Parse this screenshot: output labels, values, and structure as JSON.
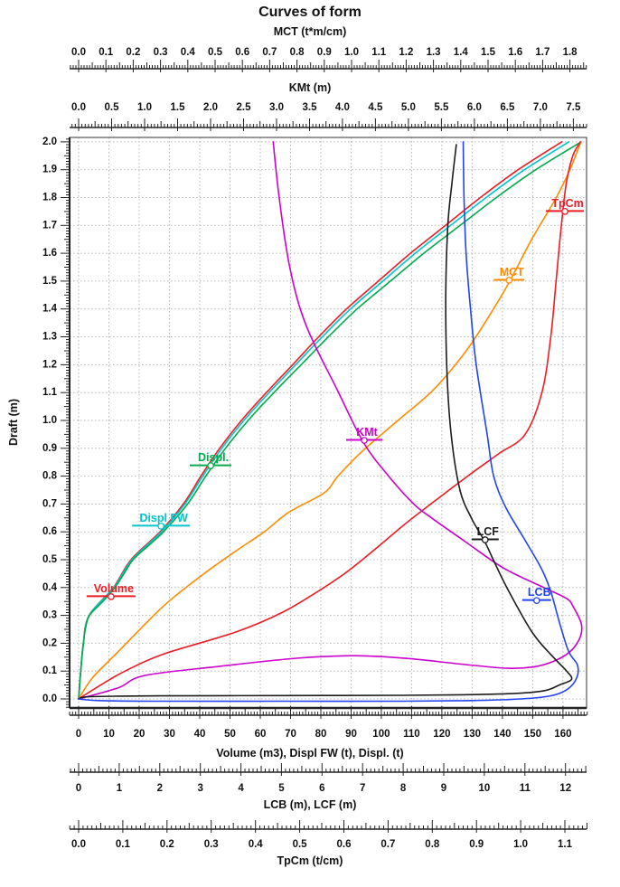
{
  "title": "Curves of form",
  "chart_data": {
    "type": "line",
    "title": "Curves of form",
    "grid": true,
    "y_axis": {
      "id": "draft",
      "title": "Draft (m)",
      "side": "left",
      "range": [
        -0.0325,
        2.016
      ],
      "major_step": 0.1,
      "medium_step": 0.05,
      "minor_step": 0.01,
      "tick_labels": [
        "0.0",
        "0.1",
        "0.2",
        "0.3",
        "0.4",
        "0.5",
        "0.6",
        "0.7",
        "0.8",
        "0.9",
        "1.0",
        "1.1",
        "1.2",
        "1.3",
        "1.4",
        "1.5",
        "1.6",
        "1.7",
        "1.8",
        "1.9",
        "2.0"
      ]
    },
    "x_axes": [
      {
        "id": "mct",
        "title": "MCT (t*m/cm)",
        "side": "top",
        "range": [
          -0.0331,
          1.861
        ],
        "major_step": 0.1,
        "medium_step": 0.05,
        "minor_step": 0.01,
        "tick_labels": [
          "0.0",
          "0.1",
          "0.2",
          "0.3",
          "0.4",
          "0.5",
          "0.6",
          "0.7",
          "0.8",
          "0.9",
          "1.0",
          "1.1",
          "1.2",
          "1.3",
          "1.4",
          "1.5",
          "1.6",
          "1.7",
          "1.8"
        ]
      },
      {
        "id": "kmt",
        "title": "KMt (m)",
        "side": "top",
        "range": [
          -0.137,
          7.7
        ],
        "major_step": 0.5,
        "medium_step": 0.25,
        "minor_step": 0.05,
        "tick_labels": [
          "0.0",
          "0.5",
          "1.0",
          "1.5",
          "2.0",
          "2.5",
          "3.0",
          "3.5",
          "4.0",
          "4.5",
          "5.0",
          "5.5",
          "6.0",
          "6.5",
          "7.0",
          "7.5"
        ]
      },
      {
        "id": "volume",
        "title": "Volume (m3), Displ FW (t), Displ. (t)",
        "side": "bottom",
        "range": [
          -3.0,
          167.8
        ],
        "major_step": 10,
        "medium_step": 5,
        "minor_step": 1,
        "tick_labels": [
          "0",
          "10",
          "20",
          "30",
          "40",
          "50",
          "60",
          "70",
          "80",
          "90",
          "100",
          "110",
          "120",
          "130",
          "140",
          "150",
          "160"
        ]
      },
      {
        "id": "lcb",
        "title": "LCB (m), LCF (m)",
        "side": "bottom",
        "range": [
          -0.2228,
          12.52
        ],
        "major_step": 1,
        "medium_step": 0.5,
        "minor_step": 0.1,
        "tick_labels": [
          "0",
          "1",
          "2",
          "3",
          "4",
          "5",
          "6",
          "7",
          "8",
          "9",
          "10",
          "11",
          "12"
        ]
      },
      {
        "id": "tpcm",
        "title": "TpCm (t/cm)",
        "side": "bottom",
        "range": [
          -0.02045,
          1.149
        ],
        "major_step": 0.1,
        "medium_step": 0.05,
        "minor_step": 0.01,
        "tick_labels": [
          "0.0",
          "0.1",
          "0.2",
          "0.3",
          "0.4",
          "0.5",
          "0.6",
          "0.7",
          "0.8",
          "0.9",
          "1.0",
          "1.1"
        ]
      }
    ],
    "series": [
      {
        "id": "volume",
        "name": "Volume",
        "axis": "volume",
        "color": "#ee1c25",
        "label": {
          "text": "Volume",
          "at": [
            0.364,
            10.7
          ],
          "underline_halfwidth": 27
        },
        "points": [
          [
            0,
            0
          ],
          [
            0.1,
            0.67
          ],
          [
            0.2,
            1.54
          ],
          [
            0.3,
            3.45
          ],
          [
            0.4,
            11.5
          ],
          [
            0.5,
            17.3
          ],
          [
            0.6,
            26.9
          ],
          [
            0.7,
            34.6
          ],
          [
            0.8,
            40.4
          ],
          [
            0.9,
            46.6
          ],
          [
            1.0,
            53.8
          ],
          [
            1.1,
            62.0
          ],
          [
            1.2,
            70.7
          ],
          [
            1.3,
            79.3
          ],
          [
            1.4,
            88.5
          ],
          [
            1.5,
            99.0
          ],
          [
            1.6,
            109.6
          ],
          [
            1.7,
            121.2
          ],
          [
            1.8,
            132.7
          ],
          [
            1.9,
            145.2
          ],
          [
            2.0,
            159.6
          ]
        ]
      },
      {
        "id": "displ_fw",
        "name": "Displ FW",
        "axis": "volume",
        "color": "#00c5cd",
        "label": {
          "text": "Displ FW",
          "at": [
            0.617,
            27.2
          ],
          "underline_halfwidth": 32
        },
        "points": [
          [
            0,
            0
          ],
          [
            0.1,
            0.68
          ],
          [
            0.2,
            1.56
          ],
          [
            0.3,
            3.5
          ],
          [
            0.4,
            11.7
          ],
          [
            0.5,
            17.6
          ],
          [
            0.6,
            27.3
          ],
          [
            0.7,
            35.1
          ],
          [
            0.8,
            41.0
          ],
          [
            0.9,
            47.3
          ],
          [
            1.0,
            54.6
          ],
          [
            1.1,
            62.9
          ],
          [
            1.2,
            71.7
          ],
          [
            1.3,
            80.5
          ],
          [
            1.4,
            89.8
          ],
          [
            1.5,
            100.5
          ],
          [
            1.6,
            111.2
          ],
          [
            1.7,
            122.9
          ],
          [
            1.8,
            134.6
          ],
          [
            1.9,
            147.3
          ],
          [
            2.0,
            161.9
          ]
        ]
      },
      {
        "id": "displ",
        "name": "Displ.",
        "axis": "volume",
        "color": "#00ab4e",
        "label": {
          "text": "Displ.",
          "at": [
            0.834,
            43.6
          ],
          "underline_halfwidth": 23
        },
        "points": [
          [
            0,
            0
          ],
          [
            0.05,
            0.3
          ],
          [
            0.1,
            0.7
          ],
          [
            0.15,
            1.1
          ],
          [
            0.2,
            1.6
          ],
          [
            0.25,
            2.2
          ],
          [
            0.3,
            3.6
          ],
          [
            0.35,
            8.0
          ],
          [
            0.4,
            12.0
          ],
          [
            0.45,
            15.0
          ],
          [
            0.5,
            18.0
          ],
          [
            0.55,
            23.0
          ],
          [
            0.6,
            28.0
          ],
          [
            0.7,
            36.0
          ],
          [
            0.8,
            42.0
          ],
          [
            0.9,
            48.5
          ],
          [
            1.0,
            56.0
          ],
          [
            1.1,
            64.5
          ],
          [
            1.2,
            73.5
          ],
          [
            1.3,
            82.5
          ],
          [
            1.4,
            92.0
          ],
          [
            1.5,
            103.0
          ],
          [
            1.6,
            114.0
          ],
          [
            1.7,
            126.0
          ],
          [
            1.8,
            138.0
          ],
          [
            1.9,
            151.0
          ],
          [
            2.0,
            166.0
          ]
        ]
      },
      {
        "id": "mct",
        "name": "MCT",
        "axis": "mct",
        "color": "#ff8c00",
        "label": {
          "text": "MCT",
          "at": [
            1.5,
            1.577
          ],
          "underline_halfwidth": 17
        },
        "points": [
          [
            0,
            0
          ],
          [
            0.075,
            0.05
          ],
          [
            0.16,
            0.135
          ],
          [
            0.27,
            0.245
          ],
          [
            0.35,
            0.33
          ],
          [
            0.45,
            0.46
          ],
          [
            0.53,
            0.575
          ],
          [
            0.6,
            0.68
          ],
          [
            0.67,
            0.77
          ],
          [
            0.74,
            0.9
          ],
          [
            0.8,
            0.95
          ],
          [
            0.89,
            1.04
          ],
          [
            1.0,
            1.17
          ],
          [
            1.11,
            1.3
          ],
          [
            1.25,
            1.42
          ],
          [
            1.4,
            1.52
          ],
          [
            1.5,
            1.58
          ],
          [
            1.65,
            1.66
          ],
          [
            1.8,
            1.75
          ],
          [
            1.9,
            1.8
          ],
          [
            2.0,
            1.84
          ]
        ]
      },
      {
        "id": "tpcm",
        "name": "TpCm",
        "axis": "tpcm",
        "color": "#ee1c25",
        "label": {
          "text": "TpCm",
          "at": [
            1.747,
            1.1
          ],
          "underline_halfwidth": 21
        },
        "points": [
          [
            0,
            0
          ],
          [
            0.05,
            0.05
          ],
          [
            0.1,
            0.105
          ],
          [
            0.16,
            0.19
          ],
          [
            0.24,
            0.355
          ],
          [
            0.31,
            0.46
          ],
          [
            0.39,
            0.545
          ],
          [
            0.46,
            0.61
          ],
          [
            0.55,
            0.68
          ],
          [
            0.63,
            0.74
          ],
          [
            0.71,
            0.805
          ],
          [
            0.8,
            0.88
          ],
          [
            0.88,
            0.95
          ],
          [
            0.95,
            1.01
          ],
          [
            1.1,
            1.048
          ],
          [
            1.3,
            1.068
          ],
          [
            1.5,
            1.08
          ],
          [
            1.7,
            1.092
          ],
          [
            1.85,
            1.103
          ],
          [
            1.95,
            1.118
          ],
          [
            2.0,
            1.135
          ]
        ]
      },
      {
        "id": "kmt",
        "name": "KMt",
        "axis": "kmt",
        "color": "#cc00cc",
        "label": {
          "text": "KMt",
          "at": [
            0.925,
            4.33
          ],
          "underline_halfwidth": 20
        },
        "points": [
          [
            0,
            0
          ],
          [
            0.04,
            0.6
          ],
          [
            0.084,
            1.0
          ],
          [
            0.117,
            2.14
          ],
          [
            0.146,
            3.3
          ],
          [
            0.155,
            4.2
          ],
          [
            0.145,
            5.0
          ],
          [
            0.125,
            5.8
          ],
          [
            0.11,
            6.5
          ],
          [
            0.115,
            6.9
          ],
          [
            0.135,
            7.2
          ],
          [
            0.17,
            7.45
          ],
          [
            0.22,
            7.6
          ],
          [
            0.27,
            7.62
          ],
          [
            0.33,
            7.5
          ],
          [
            0.36,
            7.4
          ],
          [
            0.4,
            7.05
          ],
          [
            0.47,
            6.44
          ],
          [
            0.565,
            5.86
          ],
          [
            0.65,
            5.35
          ],
          [
            0.7,
            5.08
          ],
          [
            0.8,
            4.7
          ],
          [
            0.92,
            4.32
          ],
          [
            1.11,
            3.92
          ],
          [
            1.34,
            3.45
          ],
          [
            1.55,
            3.2
          ],
          [
            1.8,
            3.04
          ],
          [
            2.0,
            2.95
          ]
        ]
      },
      {
        "id": "lcf",
        "name": "LCF",
        "axis": "lcb",
        "color": "#1c1c1c",
        "label": {
          "text": "LCF",
          "at": [
            0.568,
            10.02
          ],
          "underline_halfwidth": 15
        },
        "points": [
          [
            0,
            0
          ],
          [
            0.008,
            0.3
          ],
          [
            0.011,
            2.0
          ],
          [
            0.012,
            5.0
          ],
          [
            0.013,
            8.0
          ],
          [
            0.015,
            9.5
          ],
          [
            0.02,
            10.8
          ],
          [
            0.03,
            11.5
          ],
          [
            0.05,
            11.85
          ],
          [
            0.07,
            12.15
          ],
          [
            0.1,
            12.03
          ],
          [
            0.15,
            11.7
          ],
          [
            0.237,
            11.19
          ],
          [
            0.39,
            10.59
          ],
          [
            0.497,
            10.23
          ],
          [
            0.565,
            10.01
          ],
          [
            0.65,
            9.68
          ],
          [
            0.75,
            9.4
          ],
          [
            0.94,
            9.19
          ],
          [
            1.17,
            9.08
          ],
          [
            1.45,
            9.05
          ],
          [
            1.7,
            9.1
          ],
          [
            1.85,
            9.2
          ],
          [
            1.99,
            9.31
          ]
        ]
      },
      {
        "id": "lcb",
        "name": "LCB",
        "axis": "lcb",
        "color": "#2244ee",
        "label": {
          "text": "LCB",
          "at": [
            0.35,
            11.29
          ],
          "underline_halfwidth": 16
        },
        "points": [
          [
            0,
            0
          ],
          [
            -0.006,
            0.5
          ],
          [
            -0.008,
            2.0
          ],
          [
            -0.008,
            5.0
          ],
          [
            -0.008,
            8.0
          ],
          [
            -0.006,
            9.7
          ],
          [
            0.0,
            10.9
          ],
          [
            0.01,
            11.6
          ],
          [
            0.03,
            12.0
          ],
          [
            0.07,
            12.26
          ],
          [
            0.12,
            12.3
          ],
          [
            0.17,
            12.08
          ],
          [
            0.27,
            11.86
          ],
          [
            0.39,
            11.63
          ],
          [
            0.47,
            11.4
          ],
          [
            0.578,
            10.97
          ],
          [
            0.69,
            10.52
          ],
          [
            0.8,
            10.23
          ],
          [
            0.95,
            10.07
          ],
          [
            1.2,
            9.8
          ],
          [
            1.4,
            9.66
          ],
          [
            1.6,
            9.55
          ],
          [
            1.8,
            9.5
          ],
          [
            2.0,
            9.48
          ]
        ]
      }
    ],
    "layout_note_colors": {
      "grid": "#b5b5b5",
      "axis_line": "#222222",
      "box_border": "#555555"
    }
  }
}
